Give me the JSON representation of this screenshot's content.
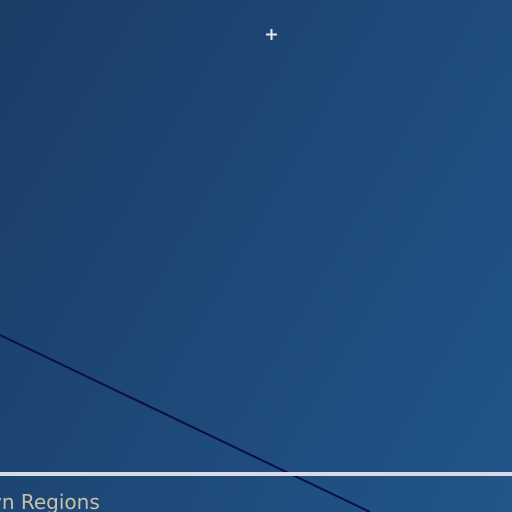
{
  "map": {
    "background_colors": [
      "#1b3d66",
      "#22558a"
    ],
    "crosshair_icon": "crosshair-icon",
    "route_color": "#0b0f44",
    "divider_color": "#d9dbe0"
  },
  "labels": {
    "region_label": "yn Regions"
  }
}
